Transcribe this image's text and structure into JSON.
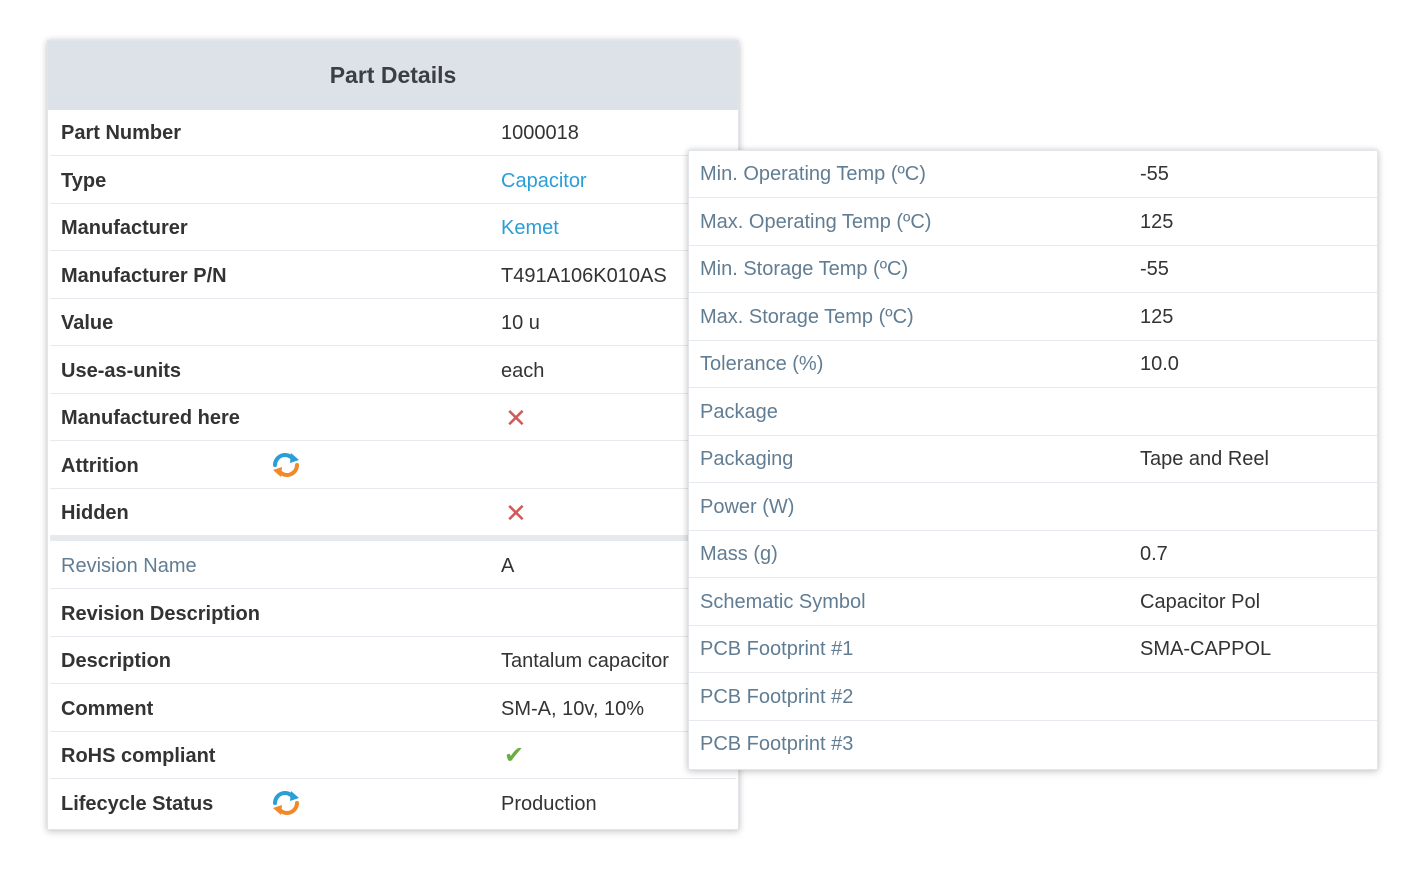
{
  "part_details": {
    "title": "Part Details",
    "rows": [
      {
        "label": "Part Number",
        "value": "1000018"
      },
      {
        "label": "Type",
        "value": "Capacitor"
      },
      {
        "label": "Manufacturer",
        "value": "Kemet"
      },
      {
        "label": "Manufacturer P/N",
        "value": "T491A106K010AS"
      },
      {
        "label": "Value",
        "value": "10 u"
      },
      {
        "label": "Use-as-units",
        "value": "each"
      },
      {
        "label": "Manufactured here",
        "value": "✕"
      },
      {
        "label": "Attrition",
        "value": ""
      },
      {
        "label": "Hidden",
        "value": "✕"
      }
    ],
    "revision_rows": [
      {
        "label": "Revision Name",
        "value": "A"
      },
      {
        "label": "Revision Description",
        "value": ""
      },
      {
        "label": "Description",
        "value": "Tantalum capacitor"
      },
      {
        "label": "Comment",
        "value": "SM-A, 10v, 10%"
      },
      {
        "label": "RoHS compliant",
        "value": "✔"
      },
      {
        "label": "Lifecycle Status",
        "value": "Production"
      }
    ]
  },
  "attributes": {
    "rows": [
      {
        "label": "Min. Operating Temp (ºC)",
        "value": "-55"
      },
      {
        "label": "Max. Operating Temp (ºC)",
        "value": "125"
      },
      {
        "label": "Min. Storage Temp (ºC)",
        "value": "-55"
      },
      {
        "label": "Max. Storage Temp (ºC)",
        "value": "125"
      },
      {
        "label": "Tolerance (%)",
        "value": "10.0"
      },
      {
        "label": "Package",
        "value": ""
      },
      {
        "label": "Packaging",
        "value": "Tape and Reel"
      },
      {
        "label": "Power (W)",
        "value": ""
      },
      {
        "label": "Mass (g)",
        "value": "0.7"
      },
      {
        "label": "Schematic Symbol",
        "value": "Capacitor Pol"
      },
      {
        "label": "PCB Footprint #1",
        "value": "SMA-CAPPOL"
      },
      {
        "label": "PCB Footprint #2",
        "value": ""
      },
      {
        "label": "PCB Footprint #3",
        "value": ""
      }
    ]
  },
  "colors": {
    "link": "#2a9ed6",
    "cross": "#d25a5a",
    "check": "#6aad42",
    "header_bg": "#dde2e8",
    "soft_label": "#617d93"
  },
  "icons": {
    "sync": "sync-icon",
    "cross": "cross-icon",
    "check": "check-icon"
  }
}
